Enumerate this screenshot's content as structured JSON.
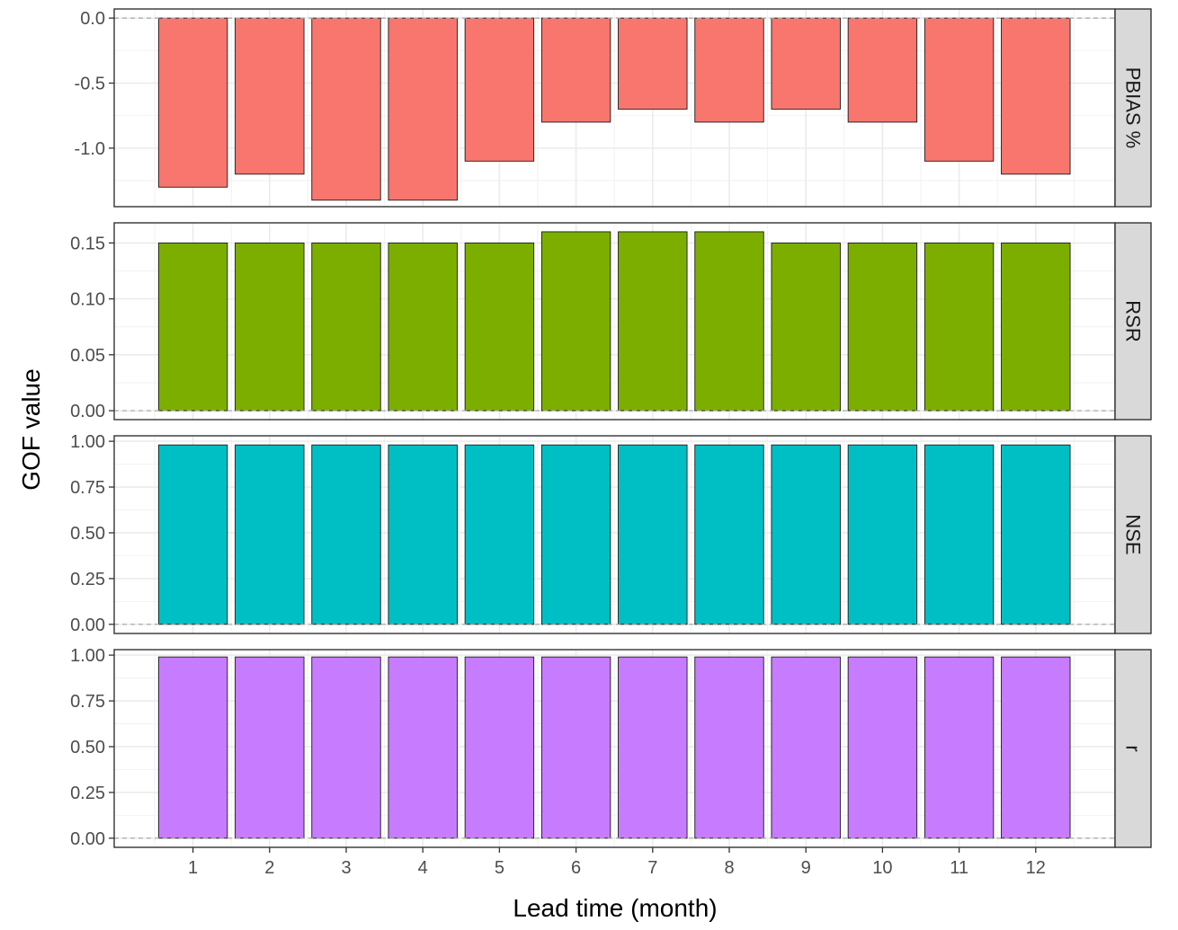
{
  "chart_data": {
    "type": "bar",
    "xlabel": "Lead time (month)",
    "ylabel": "GOF value",
    "categories": [
      "1",
      "2",
      "3",
      "4",
      "5",
      "6",
      "7",
      "8",
      "9",
      "10",
      "11",
      "12"
    ],
    "grid": true,
    "legend": "none",
    "panels": [
      {
        "name": "PBIAS %",
        "color": "#F8766D",
        "values": [
          -1.3,
          -1.2,
          -1.4,
          -1.4,
          -1.1,
          -0.8,
          -0.7,
          -0.8,
          -0.7,
          -0.8,
          -1.1,
          -1.2
        ],
        "ylim": [
          -1.45,
          0.07
        ],
        "yticks": [
          0.0,
          -0.5,
          -1.0
        ],
        "ytick_labels": [
          "0.0",
          "-0.5",
          "-1.0"
        ]
      },
      {
        "name": "RSR",
        "color": "#7CAE00",
        "values": [
          0.15,
          0.15,
          0.15,
          0.15,
          0.15,
          0.16,
          0.16,
          0.16,
          0.15,
          0.15,
          0.15,
          0.15
        ],
        "ylim": [
          -0.008,
          0.168
        ],
        "yticks": [
          0.0,
          0.05,
          0.1,
          0.15
        ],
        "ytick_labels": [
          "0.00",
          "0.05",
          "0.10",
          "0.15"
        ]
      },
      {
        "name": "NSE",
        "color": "#00BFC4",
        "values": [
          0.98,
          0.98,
          0.98,
          0.98,
          0.98,
          0.98,
          0.98,
          0.98,
          0.98,
          0.98,
          0.98,
          0.98
        ],
        "ylim": [
          -0.05,
          1.03
        ],
        "yticks": [
          0.0,
          0.25,
          0.5,
          0.75,
          1.0
        ],
        "ytick_labels": [
          "0.00",
          "0.25",
          "0.50",
          "0.75",
          "1.00"
        ]
      },
      {
        "name": "r",
        "color": "#C77CFF",
        "values": [
          0.99,
          0.99,
          0.99,
          0.99,
          0.99,
          0.99,
          0.99,
          0.99,
          0.99,
          0.99,
          0.99,
          0.99
        ],
        "ylim": [
          -0.05,
          1.03
        ],
        "yticks": [
          0.0,
          0.25,
          0.5,
          0.75,
          1.0
        ],
        "ytick_labels": [
          "0.00",
          "0.25",
          "0.50",
          "0.75",
          "1.00"
        ]
      }
    ]
  }
}
